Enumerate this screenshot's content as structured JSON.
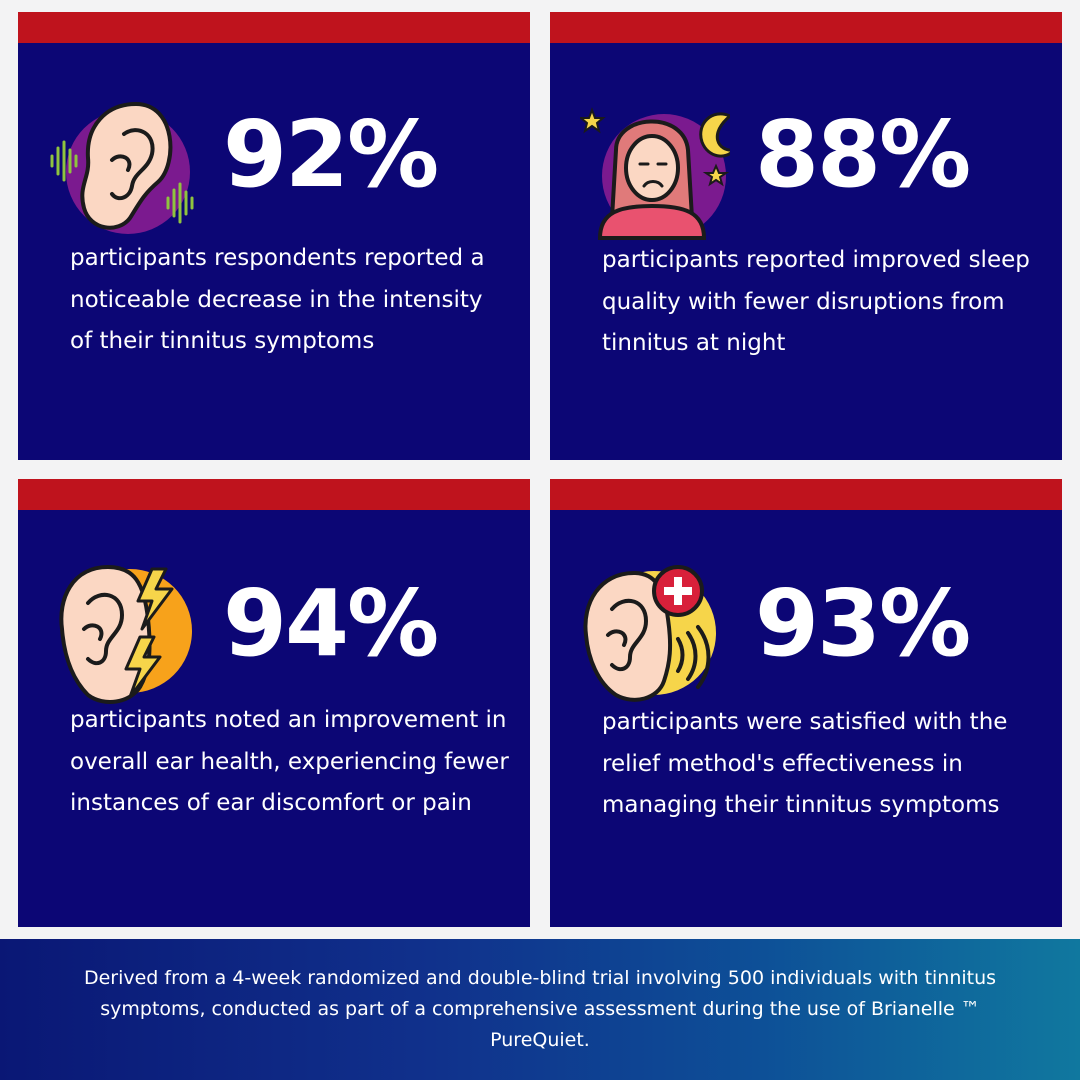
{
  "stats": [
    {
      "percent": "92%",
      "icon": "ear-sound-waves-icon",
      "description": "participants respondents reported a noticeable decrease in the intensity of their tinnitus symptoms"
    },
    {
      "percent": "88%",
      "icon": "sleepless-woman-moon-icon",
      "description": "participants reported improved sleep quality with fewer disruptions from tinnitus at night"
    },
    {
      "percent": "94%",
      "icon": "ear-lightning-pain-icon",
      "description": "participants noted an improvement in overall ear health, experiencing fewer instances of ear discomfort or pain"
    },
    {
      "percent": "93%",
      "icon": "ear-medical-cross-icon",
      "description": "participants were satisfied with the relief method's effectiveness in managing their tinnitus symptoms"
    }
  ],
  "footer": {
    "text": "Derived from a 4-week randomized and double-blind trial involving 500 individuals with tinnitus symptoms, conducted as part of a comprehensive assessment during the use of Brianelle ™ PureQuiet."
  },
  "colors": {
    "card_background": "#0c0675",
    "accent_bar": "#bf131d",
    "text": "#ffffff"
  }
}
